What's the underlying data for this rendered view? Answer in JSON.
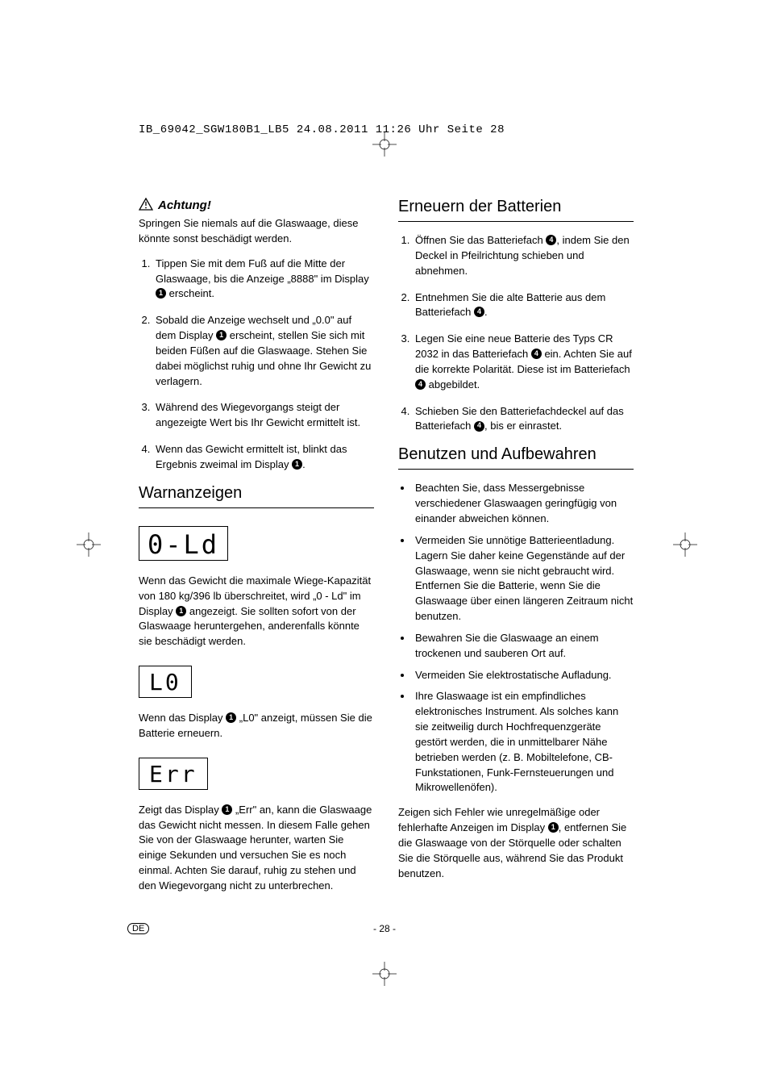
{
  "meta": {
    "header_line": "IB_69042_SGW180B1_LB5  24.08.2011  11:26 Uhr  Seite 28",
    "page_number": "- 28 -",
    "lang_badge": "DE"
  },
  "left": {
    "achtung_label": "Achtung!",
    "achtung_intro": "Springen Sie niemals auf die Glaswaage, diese könnte sonst beschädigt werden.",
    "steps": [
      "Tippen Sie mit dem Fuß auf die Mitte der Glaswaage, bis die Anzeige „8888\" im Display {1} erscheint.",
      "Sobald die Anzeige wechselt und „0.0\" auf dem Display {1} erscheint, stellen Sie sich mit beiden Füßen auf die Glaswaage. Stehen Sie dabei möglichst ruhig und ohne Ihr Gewicht zu verlagern.",
      "Während des Wiegevorgangs steigt der angezeigte Wert bis Ihr Gewicht ermittelt ist.",
      "Wenn das Gewicht ermittelt ist, blinkt das Ergebnis zweimal im Display {1}."
    ],
    "warn_heading": "Warnanzeigen",
    "lcd_old": "0-Ld",
    "old_text": "Wenn das Gewicht die maximale Wiege-Kapazität von 180 kg/396 lb überschreitet, wird „0 - Ld\" im Display {1} angezeigt. Sie sollten sofort von der Glaswaage heruntergehen, anderenfalls könnte sie beschädigt werden.",
    "lcd_lo": "L0",
    "lo_text": "Wenn das Display {1} „L0\" anzeigt, müssen Sie die Batterie erneuern.",
    "lcd_err": "Err",
    "err_text": "Zeigt das Display {1} „Err\" an, kann die Glaswaage das Gewicht nicht messen. In diesem Falle gehen Sie von der Glaswaage herunter, warten Sie einige Sekunden und versuchen Sie es noch einmal. Achten Sie darauf, ruhig zu stehen und den Wiegevorgang nicht zu unterbrechen."
  },
  "right": {
    "batt_heading": "Erneuern der Batterien",
    "batt_steps": [
      "Öffnen Sie das Batteriefach {4}, indem Sie den Deckel in Pfeilrichtung schieben und abnehmen.",
      "Entnehmen Sie die alte Batterie aus dem Batteriefach {4}.",
      "Legen Sie eine neue Batterie des Typs CR 2032 in das Batteriefach {4} ein. Achten Sie auf die korrekte Polarität. Diese ist im Batteriefach {4} abgebildet.",
      "Schieben Sie den Batteriefachdeckel auf das Batteriefach {4}, bis er einrastet."
    ],
    "use_heading": "Benutzen und Aufbewahren",
    "use_bullets": [
      "Beachten Sie, dass Messergebnisse verschiedener Glaswaagen geringfügig von einander abweichen können.",
      "Vermeiden Sie unnötige Batterieentladung. Lagern Sie daher keine Gegenstände auf der Glaswaage, wenn sie nicht gebraucht wird. Entfernen Sie die Batterie, wenn Sie die Glaswaage über einen längeren Zeitraum nicht benutzen.",
      "Bewahren Sie die Glaswaage an einem trockenen und sauberen Ort auf.",
      "Vermeiden Sie elektrostatische Aufladung.",
      "Ihre Glaswaage ist ein empfindliches elektronisches Instrument. Als solches kann sie zeitweilig durch Hochfrequenzgeräte gestört werden, die in unmittelbarer Nähe betrieben werden (z. B. Mobiltelefone, CB-Funkstationen, Funk-Fernsteuerungen und Mikrowellenöfen)."
    ],
    "closing": "Zeigen sich Fehler wie unregelmäßige oder fehlerhafte Anzeigen im Display {1}, entfernen Sie die Glaswaage von der Störquelle oder schalten Sie die Störquelle aus, während Sie das Produkt benutzen."
  }
}
